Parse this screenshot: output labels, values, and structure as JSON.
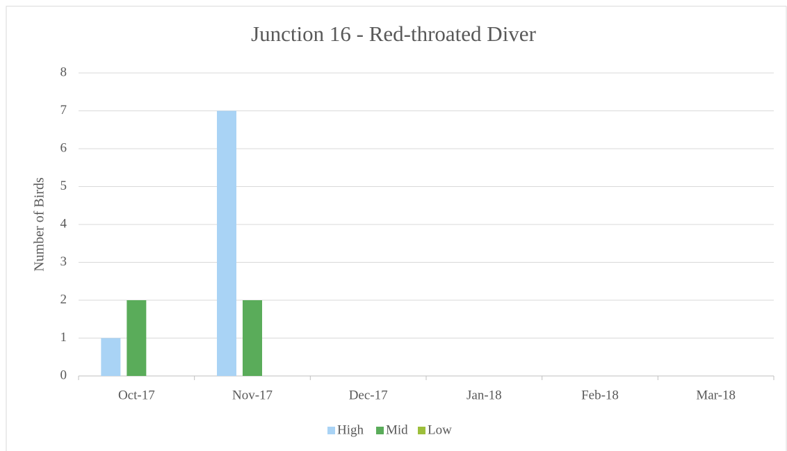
{
  "chart_data": {
    "type": "bar",
    "title": "Junction 16 - Red-throated Diver",
    "y_label": "Number of Birds",
    "categories": [
      "Oct-17",
      "Nov-17",
      "Dec-17",
      "Jan-18",
      "Feb-18",
      "Mar-18"
    ],
    "series": [
      {
        "name": "High",
        "color": "#a9d3f5",
        "values": [
          1,
          7,
          0,
          0,
          0,
          0
        ]
      },
      {
        "name": "Mid",
        "color": "#5aac5a",
        "values": [
          2,
          2,
          0,
          0,
          0,
          0
        ]
      },
      {
        "name": "Low",
        "color": "#9dbf3b",
        "values": [
          0,
          0,
          0,
          0,
          0,
          0
        ]
      }
    ],
    "ylim": [
      0,
      8
    ],
    "yticks": [
      0,
      1,
      2,
      3,
      4,
      5,
      6,
      7,
      8
    ],
    "grid": true,
    "legend": "bottom"
  }
}
